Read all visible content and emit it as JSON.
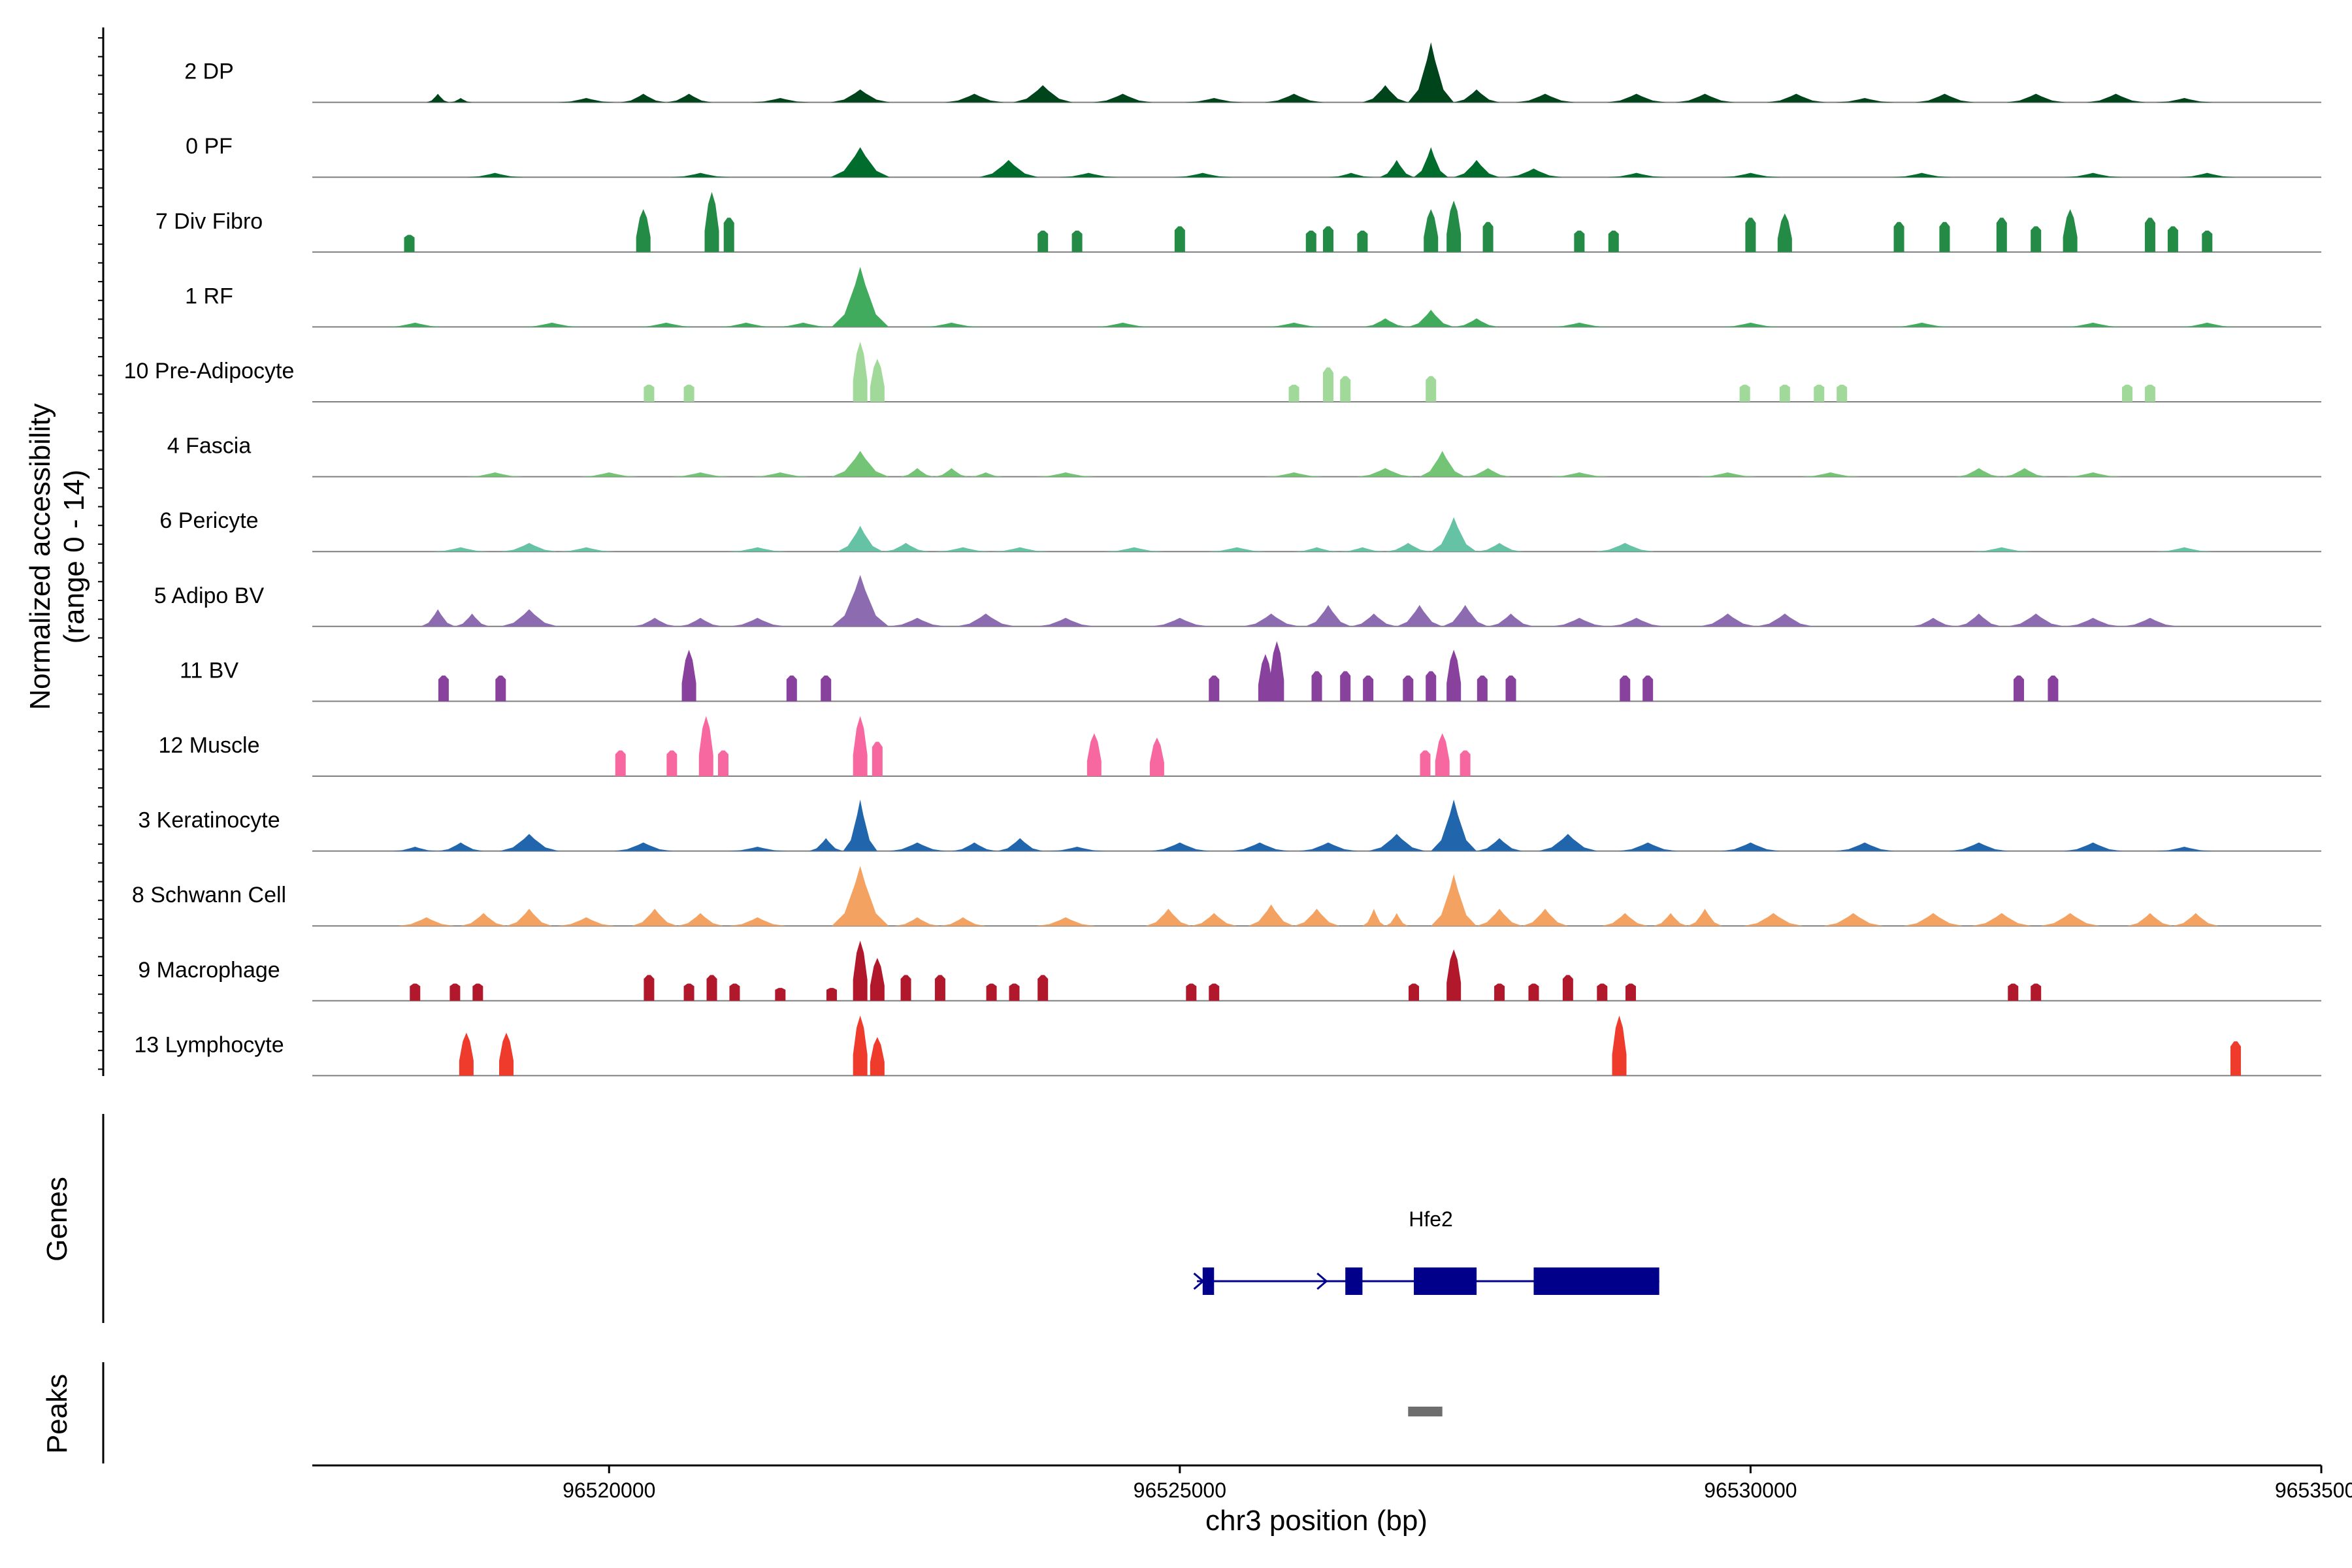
{
  "chart_data": {
    "type": "area",
    "ylabel": "Normalized accessibility",
    "ylabel_range": "(range 0 - 14)",
    "xlabel": "chr3 position (bp)",
    "x_range": [
      96517400,
      96535000
    ],
    "y_range": [
      0,
      14
    ],
    "x_ticks": [
      {
        "value": 96520000,
        "label": "96520000"
      },
      {
        "value": 96525000,
        "label": "96525000"
      },
      {
        "value": 96530000,
        "label": "96530000"
      },
      {
        "value": 96535000,
        "label": "96535000"
      }
    ],
    "series": [
      {
        "name": "2 DP",
        "color": "#00441b",
        "mode": "continuous",
        "points": [
          [
            96518500,
            2
          ],
          [
            96518700,
            1
          ],
          [
            96519800,
            1
          ],
          [
            96520300,
            2
          ],
          [
            96520700,
            2
          ],
          [
            96521500,
            1
          ],
          [
            96522200,
            3
          ],
          [
            96523200,
            2
          ],
          [
            96523800,
            4
          ],
          [
            96524500,
            2
          ],
          [
            96525300,
            1
          ],
          [
            96526000,
            2
          ],
          [
            96526800,
            4
          ],
          [
            96527200,
            14
          ],
          [
            96527600,
            3
          ],
          [
            96528200,
            2
          ],
          [
            96529000,
            2
          ],
          [
            96529600,
            2
          ],
          [
            96530400,
            2
          ],
          [
            96531000,
            1
          ],
          [
            96531700,
            2
          ],
          [
            96532500,
            2
          ],
          [
            96533200,
            2
          ],
          [
            96533800,
            1
          ]
        ]
      },
      {
        "name": "0 PF",
        "color": "#006d2c",
        "mode": "continuous",
        "points": [
          [
            96519000,
            1
          ],
          [
            96520800,
            1
          ],
          [
            96522200,
            7
          ],
          [
            96523500,
            4
          ],
          [
            96524200,
            1
          ],
          [
            96525200,
            1
          ],
          [
            96526500,
            1
          ],
          [
            96526900,
            4
          ],
          [
            96527200,
            7
          ],
          [
            96527600,
            4
          ],
          [
            96528100,
            2
          ],
          [
            96529000,
            1
          ],
          [
            96530000,
            1
          ],
          [
            96531500,
            1
          ],
          [
            96533000,
            1
          ],
          [
            96534000,
            1
          ]
        ]
      },
      {
        "name": "7 Div Fibro",
        "color": "#238b45",
        "mode": "blocks",
        "points": [
          [
            96518250,
            4
          ],
          [
            96520300,
            10
          ],
          [
            96520900,
            14
          ],
          [
            96521050,
            8
          ],
          [
            96523800,
            5
          ],
          [
            96524100,
            5
          ],
          [
            96525000,
            6
          ],
          [
            96526150,
            5
          ],
          [
            96526300,
            6
          ],
          [
            96526600,
            5
          ],
          [
            96527200,
            10
          ],
          [
            96527400,
            12
          ],
          [
            96527700,
            7
          ],
          [
            96528500,
            5
          ],
          [
            96528800,
            5
          ],
          [
            96530000,
            8
          ],
          [
            96530300,
            9
          ],
          [
            96531300,
            7
          ],
          [
            96531700,
            7
          ],
          [
            96532200,
            8
          ],
          [
            96532500,
            6
          ],
          [
            96532800,
            10
          ],
          [
            96533500,
            8
          ],
          [
            96533700,
            6
          ],
          [
            96534000,
            5
          ]
        ]
      },
      {
        "name": "1 RF",
        "color": "#41ab5d",
        "mode": "continuous",
        "points": [
          [
            96518300,
            1
          ],
          [
            96519500,
            1
          ],
          [
            96520500,
            1
          ],
          [
            96521200,
            1
          ],
          [
            96521700,
            1
          ],
          [
            96522200,
            14
          ],
          [
            96523000,
            1
          ],
          [
            96524500,
            1
          ],
          [
            96526000,
            1
          ],
          [
            96526800,
            2
          ],
          [
            96527200,
            4
          ],
          [
            96527600,
            2
          ],
          [
            96528500,
            1
          ],
          [
            96530000,
            1
          ],
          [
            96531500,
            1
          ],
          [
            96533000,
            1
          ],
          [
            96534000,
            1
          ]
        ]
      },
      {
        "name": "10 Pre-Adipocyte",
        "color": "#a1d99b",
        "mode": "blocks",
        "points": [
          [
            96520350,
            4
          ],
          [
            96520700,
            4
          ],
          [
            96522200,
            14
          ],
          [
            96522350,
            10
          ],
          [
            96526000,
            4
          ],
          [
            96526300,
            8
          ],
          [
            96526450,
            6
          ],
          [
            96527200,
            6
          ],
          [
            96529950,
            4
          ],
          [
            96530300,
            4
          ],
          [
            96530600,
            4
          ],
          [
            96530800,
            4
          ],
          [
            96533300,
            4
          ],
          [
            96533500,
            4
          ]
        ]
      },
      {
        "name": "4 Fascia",
        "color": "#74c476",
        "mode": "continuous",
        "points": [
          [
            96519000,
            1
          ],
          [
            96520000,
            1
          ],
          [
            96520800,
            1
          ],
          [
            96521500,
            1
          ],
          [
            96522200,
            6
          ],
          [
            96522700,
            2
          ],
          [
            96523000,
            2
          ],
          [
            96523300,
            1
          ],
          [
            96524000,
            1
          ],
          [
            96526000,
            1
          ],
          [
            96526800,
            2
          ],
          [
            96527300,
            6
          ],
          [
            96527700,
            2
          ],
          [
            96528500,
            1
          ],
          [
            96529800,
            1
          ],
          [
            96530700,
            1
          ],
          [
            96532000,
            2
          ],
          [
            96532400,
            2
          ],
          [
            96533000,
            1
          ]
        ]
      },
      {
        "name": "6 Pericyte",
        "color": "#66c2a4",
        "mode": "continuous",
        "points": [
          [
            96518700,
            1
          ],
          [
            96519300,
            2
          ],
          [
            96519800,
            1
          ],
          [
            96521300,
            1
          ],
          [
            96522200,
            6
          ],
          [
            96522600,
            2
          ],
          [
            96523100,
            1
          ],
          [
            96523600,
            1
          ],
          [
            96524600,
            1
          ],
          [
            96525500,
            1
          ],
          [
            96526200,
            1
          ],
          [
            96526600,
            1
          ],
          [
            96527000,
            2
          ],
          [
            96527400,
            8
          ],
          [
            96527800,
            2
          ],
          [
            96528900,
            2
          ],
          [
            96532200,
            1
          ],
          [
            96533800,
            1
          ]
        ]
      },
      {
        "name": "5 Adipo BV",
        "color": "#8c6bb1",
        "mode": "continuous",
        "points": [
          [
            96518500,
            4
          ],
          [
            96518800,
            3
          ],
          [
            96519300,
            4
          ],
          [
            96520400,
            2
          ],
          [
            96520800,
            2
          ],
          [
            96521300,
            2
          ],
          [
            96522200,
            12
          ],
          [
            96522700,
            2
          ],
          [
            96523300,
            3
          ],
          [
            96524000,
            2
          ],
          [
            96525000,
            2
          ],
          [
            96525800,
            3
          ],
          [
            96526300,
            5
          ],
          [
            96526700,
            3
          ],
          [
            96527100,
            5
          ],
          [
            96527500,
            5
          ],
          [
            96527900,
            3
          ],
          [
            96528500,
            2
          ],
          [
            96529000,
            2
          ],
          [
            96529800,
            3
          ],
          [
            96530300,
            3
          ],
          [
            96531600,
            2
          ],
          [
            96532000,
            3
          ],
          [
            96532500,
            3
          ],
          [
            96533000,
            2
          ],
          [
            96533500,
            2
          ]
        ]
      },
      {
        "name": "11 BV",
        "color": "#88419d",
        "mode": "blocks",
        "points": [
          [
            96518550,
            6
          ],
          [
            96519050,
            6
          ],
          [
            96520700,
            12
          ],
          [
            96521600,
            6
          ],
          [
            96521900,
            6
          ],
          [
            96525300,
            6
          ],
          [
            96525750,
            11
          ],
          [
            96525850,
            14
          ],
          [
            96526200,
            7
          ],
          [
            96526450,
            7
          ],
          [
            96526650,
            6
          ],
          [
            96527000,
            6
          ],
          [
            96527200,
            7
          ],
          [
            96527400,
            12
          ],
          [
            96527650,
            6
          ],
          [
            96527900,
            6
          ],
          [
            96528900,
            6
          ],
          [
            96529100,
            6
          ],
          [
            96532350,
            6
          ],
          [
            96532650,
            6
          ]
        ]
      },
      {
        "name": "12 Muscle",
        "color": "#f768a1",
        "mode": "blocks",
        "points": [
          [
            96520100,
            6
          ],
          [
            96520550,
            6
          ],
          [
            96520850,
            14
          ],
          [
            96521000,
            6
          ],
          [
            96522200,
            14
          ],
          [
            96522350,
            8
          ],
          [
            96524250,
            10
          ],
          [
            96524800,
            9
          ],
          [
            96527150,
            6
          ],
          [
            96527300,
            10
          ],
          [
            96527500,
            6
          ]
        ]
      },
      {
        "name": "3 Keratinocyte",
        "color": "#2166ac",
        "mode": "continuous",
        "points": [
          [
            96518300,
            1
          ],
          [
            96518700,
            2
          ],
          [
            96519300,
            4
          ],
          [
            96520300,
            2
          ],
          [
            96521300,
            1
          ],
          [
            96521900,
            3
          ],
          [
            96522200,
            12
          ],
          [
            96522700,
            2
          ],
          [
            96523200,
            2
          ],
          [
            96523600,
            3
          ],
          [
            96524100,
            1
          ],
          [
            96525000,
            2
          ],
          [
            96525700,
            2
          ],
          [
            96526300,
            2
          ],
          [
            96526900,
            4
          ],
          [
            96527400,
            12
          ],
          [
            96527800,
            3
          ],
          [
            96528400,
            4
          ],
          [
            96529100,
            2
          ],
          [
            96530000,
            2
          ],
          [
            96531000,
            2
          ],
          [
            96532000,
            2
          ],
          [
            96533000,
            2
          ],
          [
            96533800,
            1
          ]
        ]
      },
      {
        "name": "8 Schwann Cell",
        "color": "#f4a261",
        "mode": "continuous",
        "points": [
          [
            96518400,
            2
          ],
          [
            96518900,
            3
          ],
          [
            96519300,
            4
          ],
          [
            96519800,
            2
          ],
          [
            96520400,
            4
          ],
          [
            96520800,
            3
          ],
          [
            96521300,
            2
          ],
          [
            96522200,
            14
          ],
          [
            96522700,
            2
          ],
          [
            96523100,
            2
          ],
          [
            96524000,
            2
          ],
          [
            96524900,
            4
          ],
          [
            96525300,
            3
          ],
          [
            96525800,
            5
          ],
          [
            96526200,
            4
          ],
          [
            96526700,
            4
          ],
          [
            96526900,
            3
          ],
          [
            96527400,
            12
          ],
          [
            96527800,
            4
          ],
          [
            96528200,
            4
          ],
          [
            96528900,
            3
          ],
          [
            96529300,
            3
          ],
          [
            96529600,
            4
          ],
          [
            96530200,
            3
          ],
          [
            96530900,
            3
          ],
          [
            96531600,
            3
          ],
          [
            96532200,
            3
          ],
          [
            96532800,
            3
          ],
          [
            96533500,
            3
          ],
          [
            96533900,
            3
          ]
        ]
      },
      {
        "name": "9 Macrophage",
        "color": "#b2182b",
        "mode": "blocks",
        "points": [
          [
            96518300,
            4
          ],
          [
            96518650,
            4
          ],
          [
            96518850,
            4
          ],
          [
            96520350,
            6
          ],
          [
            96520700,
            4
          ],
          [
            96520900,
            6
          ],
          [
            96521100,
            4
          ],
          [
            96521500,
            3
          ],
          [
            96521950,
            3
          ],
          [
            96522200,
            14
          ],
          [
            96522350,
            10
          ],
          [
            96522600,
            6
          ],
          [
            96522900,
            6
          ],
          [
            96523350,
            4
          ],
          [
            96523550,
            4
          ],
          [
            96523800,
            6
          ],
          [
            96525100,
            4
          ],
          [
            96525300,
            4
          ],
          [
            96527050,
            4
          ],
          [
            96527400,
            12
          ],
          [
            96527800,
            4
          ],
          [
            96528100,
            4
          ],
          [
            96528400,
            6
          ],
          [
            96528700,
            4
          ],
          [
            96528950,
            4
          ],
          [
            96532300,
            4
          ],
          [
            96532500,
            4
          ]
        ]
      },
      {
        "name": "13 Lymphocyte",
        "color": "#ef3b2c",
        "mode": "blocks",
        "points": [
          [
            96518750,
            10
          ],
          [
            96519100,
            10
          ],
          [
            96522200,
            14
          ],
          [
            96522350,
            9
          ],
          [
            96528850,
            14
          ],
          [
            96534250,
            8
          ]
        ]
      }
    ],
    "genes_track": {
      "label": "Genes",
      "gene": "Hfe2",
      "color": "#00008b",
      "start": 96525150,
      "end": 96529200,
      "exons": [
        [
          96525200,
          96525300
        ],
        [
          96526450,
          96526600
        ],
        [
          96527050,
          96527600
        ],
        [
          96528100,
          96529200
        ]
      ],
      "arrows": [
        96525170,
        96526250
      ]
    },
    "peaks_track": {
      "label": "Peaks",
      "color": "#6e6e6e",
      "peaks": [
        [
          96527000,
          96527300
        ]
      ]
    }
  }
}
